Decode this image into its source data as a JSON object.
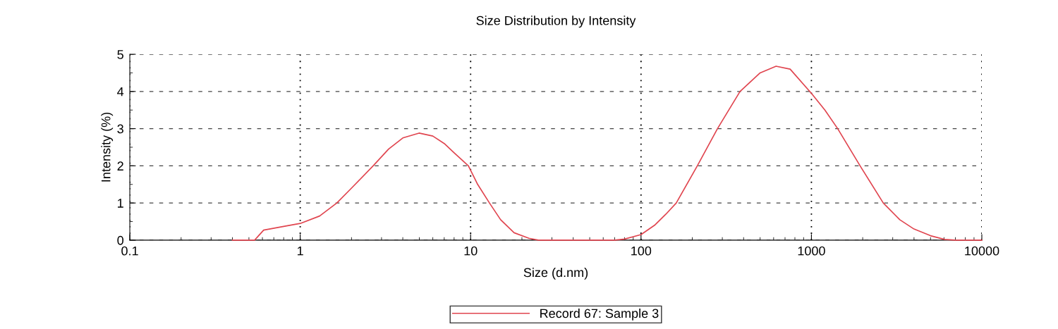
{
  "chart_data": {
    "type": "line",
    "title": "Size Distribution by Intensity",
    "xlabel": "Size (d.nm)",
    "ylabel": "Intensity (%)",
    "log": "x",
    "xlim": [
      0.1,
      10000
    ],
    "xticks": [
      0.1,
      1,
      10,
      100,
      1000,
      10000
    ],
    "ylim": [
      0,
      5
    ],
    "yticks": [
      0,
      1,
      2,
      3,
      4,
      5
    ],
    "grid": true,
    "legend": "bottom",
    "marker": "none",
    "line_style": "solid",
    "series": [
      {
        "name": "Record 67: Sample 3",
        "color": "#e0454f",
        "x": [
          0.4,
          0.54,
          0.61,
          0.8,
          1,
          1.3,
          1.64,
          2,
          2.68,
          3.3,
          4,
          4.98,
          6,
          7,
          8,
          9.7,
          11,
          12.9,
          15,
          18,
          22,
          25,
          40,
          70,
          80,
          100,
          120,
          140,
          161,
          214,
          281,
          381,
          500,
          620,
          750,
          1000,
          1200,
          1426,
          1930,
          2640,
          3300,
          4000,
          5000,
          6050,
          7000,
          10000
        ],
        "values": [
          0,
          0,
          0.27,
          0.37,
          0.45,
          0.65,
          1,
          1.4,
          2,
          2.45,
          2.75,
          2.88,
          2.8,
          2.6,
          2.35,
          2,
          1.5,
          1,
          0.55,
          0.2,
          0.05,
          0,
          0,
          0,
          0.03,
          0.15,
          0.4,
          0.7,
          1,
          2,
          3,
          4,
          4.5,
          4.68,
          4.6,
          3.95,
          3.5,
          3,
          2,
          1,
          0.55,
          0.3,
          0.12,
          0.02,
          0,
          0
        ]
      }
    ]
  }
}
